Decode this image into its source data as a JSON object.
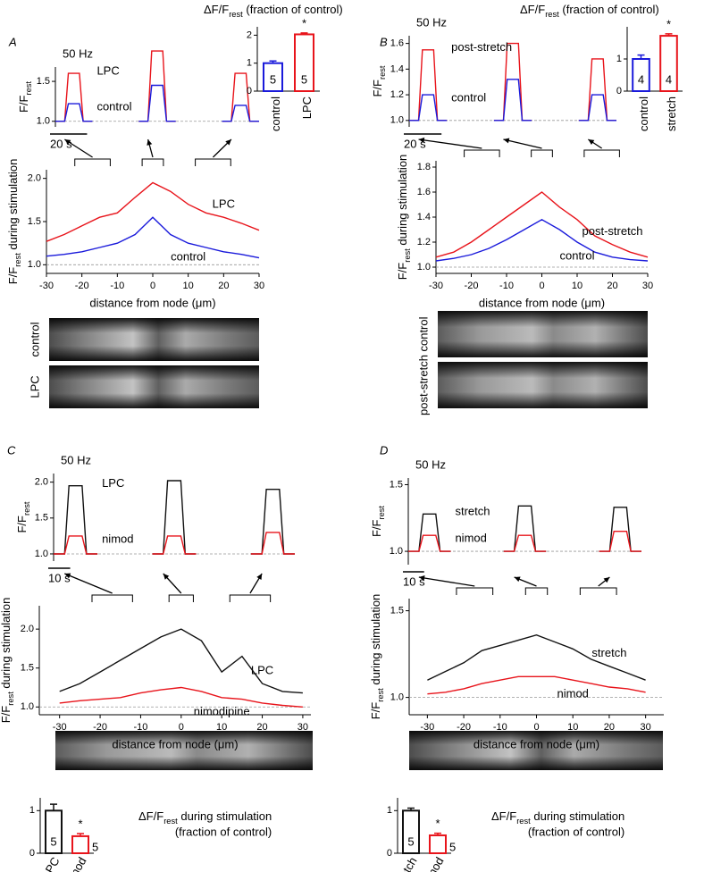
{
  "chart_data": [
    {
      "type": "line",
      "panel": "A",
      "annotation": "50 Hz",
      "ylabel": [
        "F/F",
        "rest"
      ],
      "scalebar": {
        "value": 20,
        "label": "20 s"
      },
      "x": [
        0,
        5,
        7,
        13,
        15,
        20,
        32,
        45,
        50,
        52,
        58,
        60,
        65,
        77,
        90,
        95,
        97,
        103,
        105,
        110
      ],
      "xlim": [
        0,
        110
      ],
      "ylim": [
        0.93,
        1.68
      ],
      "yticks": [
        {
          "value": 1,
          "label": "1.0"
        },
        {
          "value": 1.5,
          "label": "1.5"
        }
      ],
      "reference": 1,
      "series": [
        {
          "name": "LPC",
          "color": "#e8141b",
          "values": [
            1,
            1,
            1.6,
            1.6,
            1,
            1,
            null,
            1,
            1,
            1.88,
            1.88,
            1,
            1,
            null,
            1,
            1,
            1.6,
            1.6,
            1,
            1
          ]
        },
        {
          "name": "control",
          "color": "#1a1adb",
          "values": [
            1,
            1,
            1.22,
            1.22,
            1,
            1,
            null,
            1,
            1,
            1.45,
            1.45,
            1,
            1,
            null,
            1,
            1,
            1.2,
            1.2,
            1,
            1
          ]
        }
      ]
    },
    {
      "type": "bar",
      "title": [
        "ΔF/F",
        "rest",
        " (fraction of control)"
      ],
      "categories": [
        "control",
        "LPC"
      ],
      "values": [
        1,
        2.03
      ],
      "errors": [
        0.08,
        0.05
      ],
      "n_labels": [
        "5",
        "5"
      ],
      "colors": [
        "#1a1adb",
        "#e8141b"
      ],
      "annotation": "*",
      "ylim": [
        0,
        2.3
      ],
      "yticks": [
        0,
        1,
        2
      ]
    },
    {
      "type": "line",
      "xlabel": "distance from node (μm)",
      "ylabel": [
        "F/F",
        "rest",
        " during stimulation"
      ],
      "x": [
        -30,
        -25,
        -20,
        -15,
        -10,
        -5,
        0,
        5,
        10,
        15,
        20,
        25,
        30
      ],
      "xlim": [
        -30,
        30
      ],
      "xticks": [
        -30,
        -20,
        -10,
        0,
        10,
        20,
        30
      ],
      "ylim": [
        0.9,
        2.1
      ],
      "yticks": [
        {
          "value": 1,
          "label": "1.0"
        },
        {
          "value": 1.5,
          "label": "1.5"
        },
        {
          "value": 2,
          "label": "2.0"
        }
      ],
      "reference": 1,
      "series": [
        {
          "name": "LPC",
          "color": "#e8141b",
          "values": [
            1.27,
            1.35,
            1.45,
            1.55,
            1.6,
            1.78,
            1.95,
            1.85,
            1.7,
            1.6,
            1.55,
            1.48,
            1.4
          ]
        },
        {
          "name": "control",
          "color": "#1a1adb",
          "values": [
            1.1,
            1.12,
            1.15,
            1.2,
            1.25,
            1.35,
            1.55,
            1.35,
            1.25,
            1.2,
            1.15,
            1.12,
            1.08
          ]
        }
      ],
      "image_labels": [
        "control",
        "LPC"
      ]
    },
    {
      "type": "line",
      "panel": "B",
      "annotation": "50 Hz",
      "ylabel": [
        "F/F",
        "rest"
      ],
      "scalebar": {
        "value": 20,
        "label": "20 s"
      },
      "x": [
        0,
        5,
        7,
        13,
        15,
        20,
        32,
        45,
        50,
        52,
        58,
        60,
        65,
        77,
        90,
        95,
        97,
        103,
        105,
        110
      ],
      "xlim": [
        0,
        110
      ],
      "ylim": [
        0.95,
        1.66
      ],
      "yticks": [
        {
          "value": 1,
          "label": "1.0"
        },
        {
          "value": 1.2,
          "label": "1.2"
        },
        {
          "value": 1.4,
          "label": "1.4"
        },
        {
          "value": 1.6,
          "label": "1.6"
        }
      ],
      "reference": 1,
      "series": [
        {
          "name": "post-stretch",
          "color": "#e8141b",
          "values": [
            1,
            1,
            1.55,
            1.55,
            1,
            1,
            null,
            1,
            1,
            1.6,
            1.6,
            1,
            1,
            null,
            1,
            1,
            1.48,
            1.48,
            1,
            1
          ]
        },
        {
          "name": "control",
          "color": "#1a1adb",
          "values": [
            1,
            1,
            1.2,
            1.2,
            1,
            1,
            null,
            1,
            1,
            1.32,
            1.32,
            1,
            1,
            null,
            1,
            1,
            1.2,
            1.2,
            1,
            1
          ]
        }
      ]
    },
    {
      "type": "bar",
      "title": [
        "ΔF/F",
        "rest",
        " (fraction of control)"
      ],
      "categories": [
        "control",
        "stretch"
      ],
      "values": [
        1,
        1.72
      ],
      "errors": [
        0.12,
        0.06
      ],
      "n_labels": [
        "4",
        "4"
      ],
      "colors": [
        "#1a1adb",
        "#e8141b"
      ],
      "annotation": "*",
      "ylim": [
        0,
        2
      ],
      "yticks": [
        0,
        1
      ]
    },
    {
      "type": "line",
      "xlabel": "distance from node (μm)",
      "ylabel": [
        "F/F",
        "rest",
        " during stimulation"
      ],
      "x": [
        -30,
        -25,
        -20,
        -15,
        -10,
        -5,
        0,
        5,
        10,
        15,
        20,
        25,
        30
      ],
      "xlim": [
        -30,
        30
      ],
      "xticks": [
        -30,
        -20,
        -10,
        0,
        10,
        20,
        30
      ],
      "ylim": [
        0.95,
        1.85
      ],
      "yticks": [
        {
          "value": 1,
          "label": "1.0"
        },
        {
          "value": 1.2,
          "label": "1.2"
        },
        {
          "value": 1.4,
          "label": "1.4"
        },
        {
          "value": 1.6,
          "label": "1.6"
        },
        {
          "value": 1.8,
          "label": "1.8"
        }
      ],
      "reference": 1,
      "series": [
        {
          "name": "post-stretch",
          "color": "#e8141b",
          "values": [
            1.08,
            1.12,
            1.2,
            1.3,
            1.4,
            1.5,
            1.6,
            1.48,
            1.38,
            1.25,
            1.18,
            1.12,
            1.08
          ]
        },
        {
          "name": "control",
          "color": "#1a1adb",
          "values": [
            1.05,
            1.07,
            1.1,
            1.15,
            1.22,
            1.3,
            1.38,
            1.3,
            1.2,
            1.12,
            1.08,
            1.06,
            1.05
          ]
        }
      ],
      "image_labels": [
        "control",
        "post-stretch"
      ]
    },
    {
      "type": "line",
      "panel": "C",
      "annotation": "50 Hz",
      "ylabel": [
        "F/F",
        "rest"
      ],
      "scalebar": {
        "value": 10,
        "label": "10 s"
      },
      "x": [
        0,
        5,
        7,
        13,
        15,
        20,
        32,
        45,
        50,
        52,
        58,
        60,
        65,
        77,
        90,
        95,
        97,
        103,
        105,
        110
      ],
      "xlim": [
        0,
        110
      ],
      "ylim": [
        0.9,
        2.12
      ],
      "yticks": [
        {
          "value": 1,
          "label": "1.0"
        },
        {
          "value": 1.5,
          "label": "1.5"
        },
        {
          "value": 2,
          "label": "2.0"
        }
      ],
      "reference": 1,
      "series": [
        {
          "name": "LPC",
          "color": "#111111",
          "values": [
            1,
            1,
            1.95,
            1.95,
            1,
            1,
            null,
            1,
            1,
            2.02,
            2.02,
            1,
            1,
            null,
            1,
            1,
            1.9,
            1.9,
            1,
            1
          ]
        },
        {
          "name": "nimod",
          "color": "#e8141b",
          "values": [
            1,
            1,
            1.25,
            1.25,
            1,
            1,
            null,
            1,
            1,
            1.25,
            1.25,
            1,
            1,
            null,
            1,
            1,
            1.3,
            1.3,
            1,
            1
          ]
        }
      ]
    },
    {
      "type": "line",
      "xlabel": "distance from node (μm)",
      "ylabel": [
        "F/F",
        "rest",
        " during stimulation"
      ],
      "x": [
        -30,
        -25,
        -20,
        -15,
        -10,
        -5,
        0,
        5,
        10,
        15,
        20,
        25,
        30
      ],
      "xlim": [
        -35,
        32
      ],
      "xticks": [
        -30,
        -20,
        -10,
        0,
        10,
        20,
        30
      ],
      "ylim": [
        0.9,
        2.3
      ],
      "yticks": [
        {
          "value": 1,
          "label": "1.0"
        },
        {
          "value": 1.5,
          "label": "1.5"
        },
        {
          "value": 2,
          "label": "2.0"
        }
      ],
      "reference": 1,
      "series": [
        {
          "name": "LPC",
          "color": "#111111",
          "values": [
            1.2,
            1.3,
            1.45,
            1.6,
            1.75,
            1.9,
            2.0,
            1.85,
            1.45,
            1.65,
            1.3,
            1.2,
            1.18
          ]
        },
        {
          "name": "nimodipine",
          "color": "#e8141b",
          "values": [
            1.05,
            1.08,
            1.1,
            1.12,
            1.18,
            1.22,
            1.25,
            1.2,
            1.12,
            1.1,
            1.05,
            1.02,
            1.0
          ]
        }
      ]
    },
    {
      "type": "bar",
      "title": [
        "ΔF/F",
        "rest",
        " during stimulation"
      ],
      "subtitle": "(fraction of control)",
      "categories": [
        "LPC",
        "nimod"
      ],
      "values": [
        1,
        0.4
      ],
      "errors": [
        0.15,
        0.06
      ],
      "n_labels": [
        "5",
        "5"
      ],
      "colors": [
        "#111111",
        "#e8141b"
      ],
      "annotation": "*",
      "ylim": [
        0,
        1.3
      ],
      "yticks": [
        0,
        1
      ]
    },
    {
      "type": "line",
      "panel": "D",
      "annotation": "50 Hz",
      "ylabel": [
        "F/F",
        "rest"
      ],
      "scalebar": {
        "value": 10,
        "label": "10 s"
      },
      "x": [
        0,
        5,
        7,
        13,
        15,
        20,
        32,
        45,
        50,
        52,
        58,
        60,
        65,
        77,
        90,
        95,
        97,
        103,
        105,
        110
      ],
      "xlim": [
        0,
        110
      ],
      "ylim": [
        0.9,
        1.55
      ],
      "yticks": [
        {
          "value": 1,
          "label": "1.0"
        },
        {
          "value": 1.5,
          "label": "1.5"
        }
      ],
      "reference": 1,
      "series": [
        {
          "name": "stretch",
          "color": "#111111",
          "values": [
            1,
            1,
            1.28,
            1.28,
            1,
            1,
            null,
            1,
            1,
            1.34,
            1.34,
            1,
            1,
            null,
            1,
            1,
            1.33,
            1.33,
            1,
            1
          ]
        },
        {
          "name": "nimod",
          "color": "#e8141b",
          "values": [
            1,
            1,
            1.12,
            1.12,
            1,
            1,
            null,
            1,
            1,
            1.12,
            1.12,
            1,
            1,
            null,
            1,
            1,
            1.15,
            1.15,
            1,
            1
          ]
        }
      ]
    },
    {
      "type": "line",
      "xlabel": "distance from node (μm)",
      "ylabel": [
        "F/F",
        "rest",
        " during stimulation"
      ],
      "x": [
        -30,
        -25,
        -20,
        -15,
        -10,
        -5,
        0,
        5,
        10,
        15,
        20,
        25,
        30
      ],
      "xlim": [
        -35,
        35
      ],
      "xticks": [
        -30,
        -20,
        -10,
        0,
        10,
        20,
        30
      ],
      "ylim": [
        0.9,
        1.57
      ],
      "yticks": [
        {
          "value": 1,
          "label": "1.0"
        },
        {
          "value": 1.5,
          "label": "1.5"
        }
      ],
      "reference": 1,
      "series": [
        {
          "name": "stretch",
          "color": "#111111",
          "values": [
            1.1,
            1.15,
            1.2,
            1.27,
            1.3,
            1.33,
            1.36,
            1.32,
            1.28,
            1.22,
            1.18,
            1.14,
            1.1
          ]
        },
        {
          "name": "nimod",
          "color": "#e8141b",
          "values": [
            1.02,
            1.03,
            1.05,
            1.08,
            1.1,
            1.12,
            1.12,
            1.12,
            1.1,
            1.08,
            1.06,
            1.05,
            1.03
          ]
        }
      ]
    },
    {
      "type": "bar",
      "title": [
        "ΔF/F",
        "rest",
        " during stimulation"
      ],
      "subtitle": "(fraction of control)",
      "categories": [
        "stretch",
        "nimod"
      ],
      "values": [
        1,
        0.42
      ],
      "errors": [
        0.06,
        0.05
      ],
      "n_labels": [
        "5",
        "5"
      ],
      "colors": [
        "#111111",
        "#e8141b"
      ],
      "annotation": "*",
      "ylim": [
        0,
        1.3
      ],
      "yticks": [
        0,
        1
      ]
    }
  ]
}
